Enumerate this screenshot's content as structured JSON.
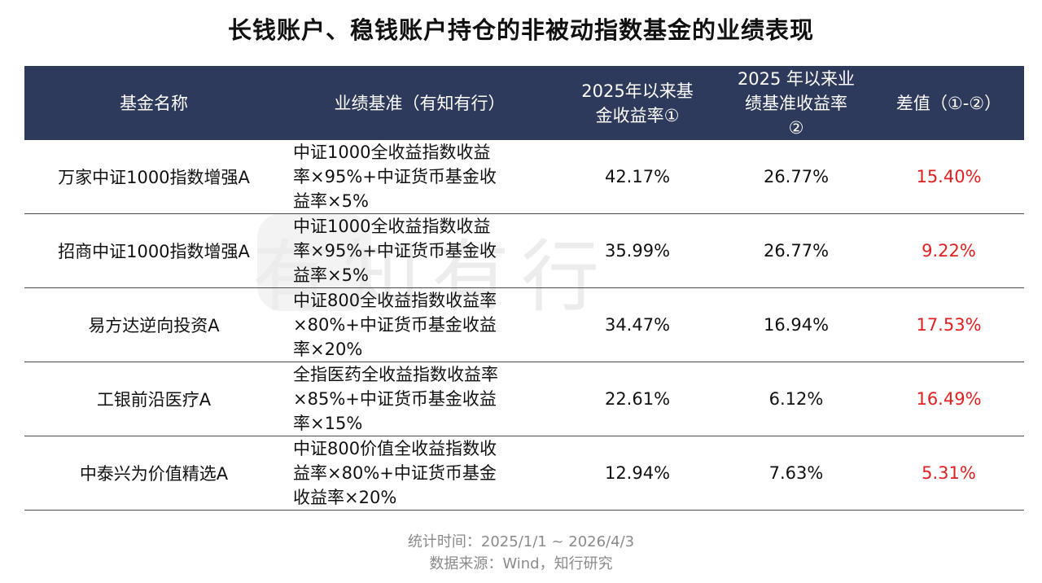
{
  "title": "长钱账户、稳钱账户持仓的非被动指数基金的业绩表现",
  "watermark": "有知有行",
  "table": {
    "headers": [
      "基金名称",
      "业绩基准（有知有行）",
      "2025年以来基\n金收益率①",
      "2025 年以来业\n绩基准收益率\n②",
      "差值（①-②）"
    ],
    "rows": [
      {
        "name": "万家中证1000指数增强A",
        "bench": "中证1000全收益指数收益\n率×95%+中证货币基金收\n益率×5%",
        "fund": "42.17%",
        "base": "26.77%",
        "diff": "15.40%"
      },
      {
        "name": "招商中证1000指数增强A",
        "bench": "中证1000全收益指数收益\n率×95%+中证货币基金收\n益率×5%",
        "fund": "35.99%",
        "base": "26.77%",
        "diff": "9.22%"
      },
      {
        "name": "易方达逆向投资A",
        "bench": "中证800全收益指数收益率\n×80%+中证货币基金收益\n率×20%",
        "fund": "34.47%",
        "base": "16.94%",
        "diff": "17.53%"
      },
      {
        "name": "工银前沿医疗A",
        "bench": "全指医药全收益指数收益率\n×85%+中证货币基金收益\n率×15%",
        "fund": "22.61%",
        "base": "6.12%",
        "diff": "16.49%"
      },
      {
        "name": "中泰兴为价值精选A",
        "bench": "中证800价值全收益指数收\n益率×80%+中证货币基金\n收益率×20%",
        "fund": "12.94%",
        "base": "7.63%",
        "diff": "5.31%"
      }
    ]
  },
  "footer": {
    "period": "统计时间：2025/1/1 ~ 2026/4/3",
    "source": "数据来源：Wind，知行研究"
  },
  "colors": {
    "header_bg": "#2e3a5c",
    "diff_text": "#e02020",
    "footer_text": "#8a8a8a"
  }
}
